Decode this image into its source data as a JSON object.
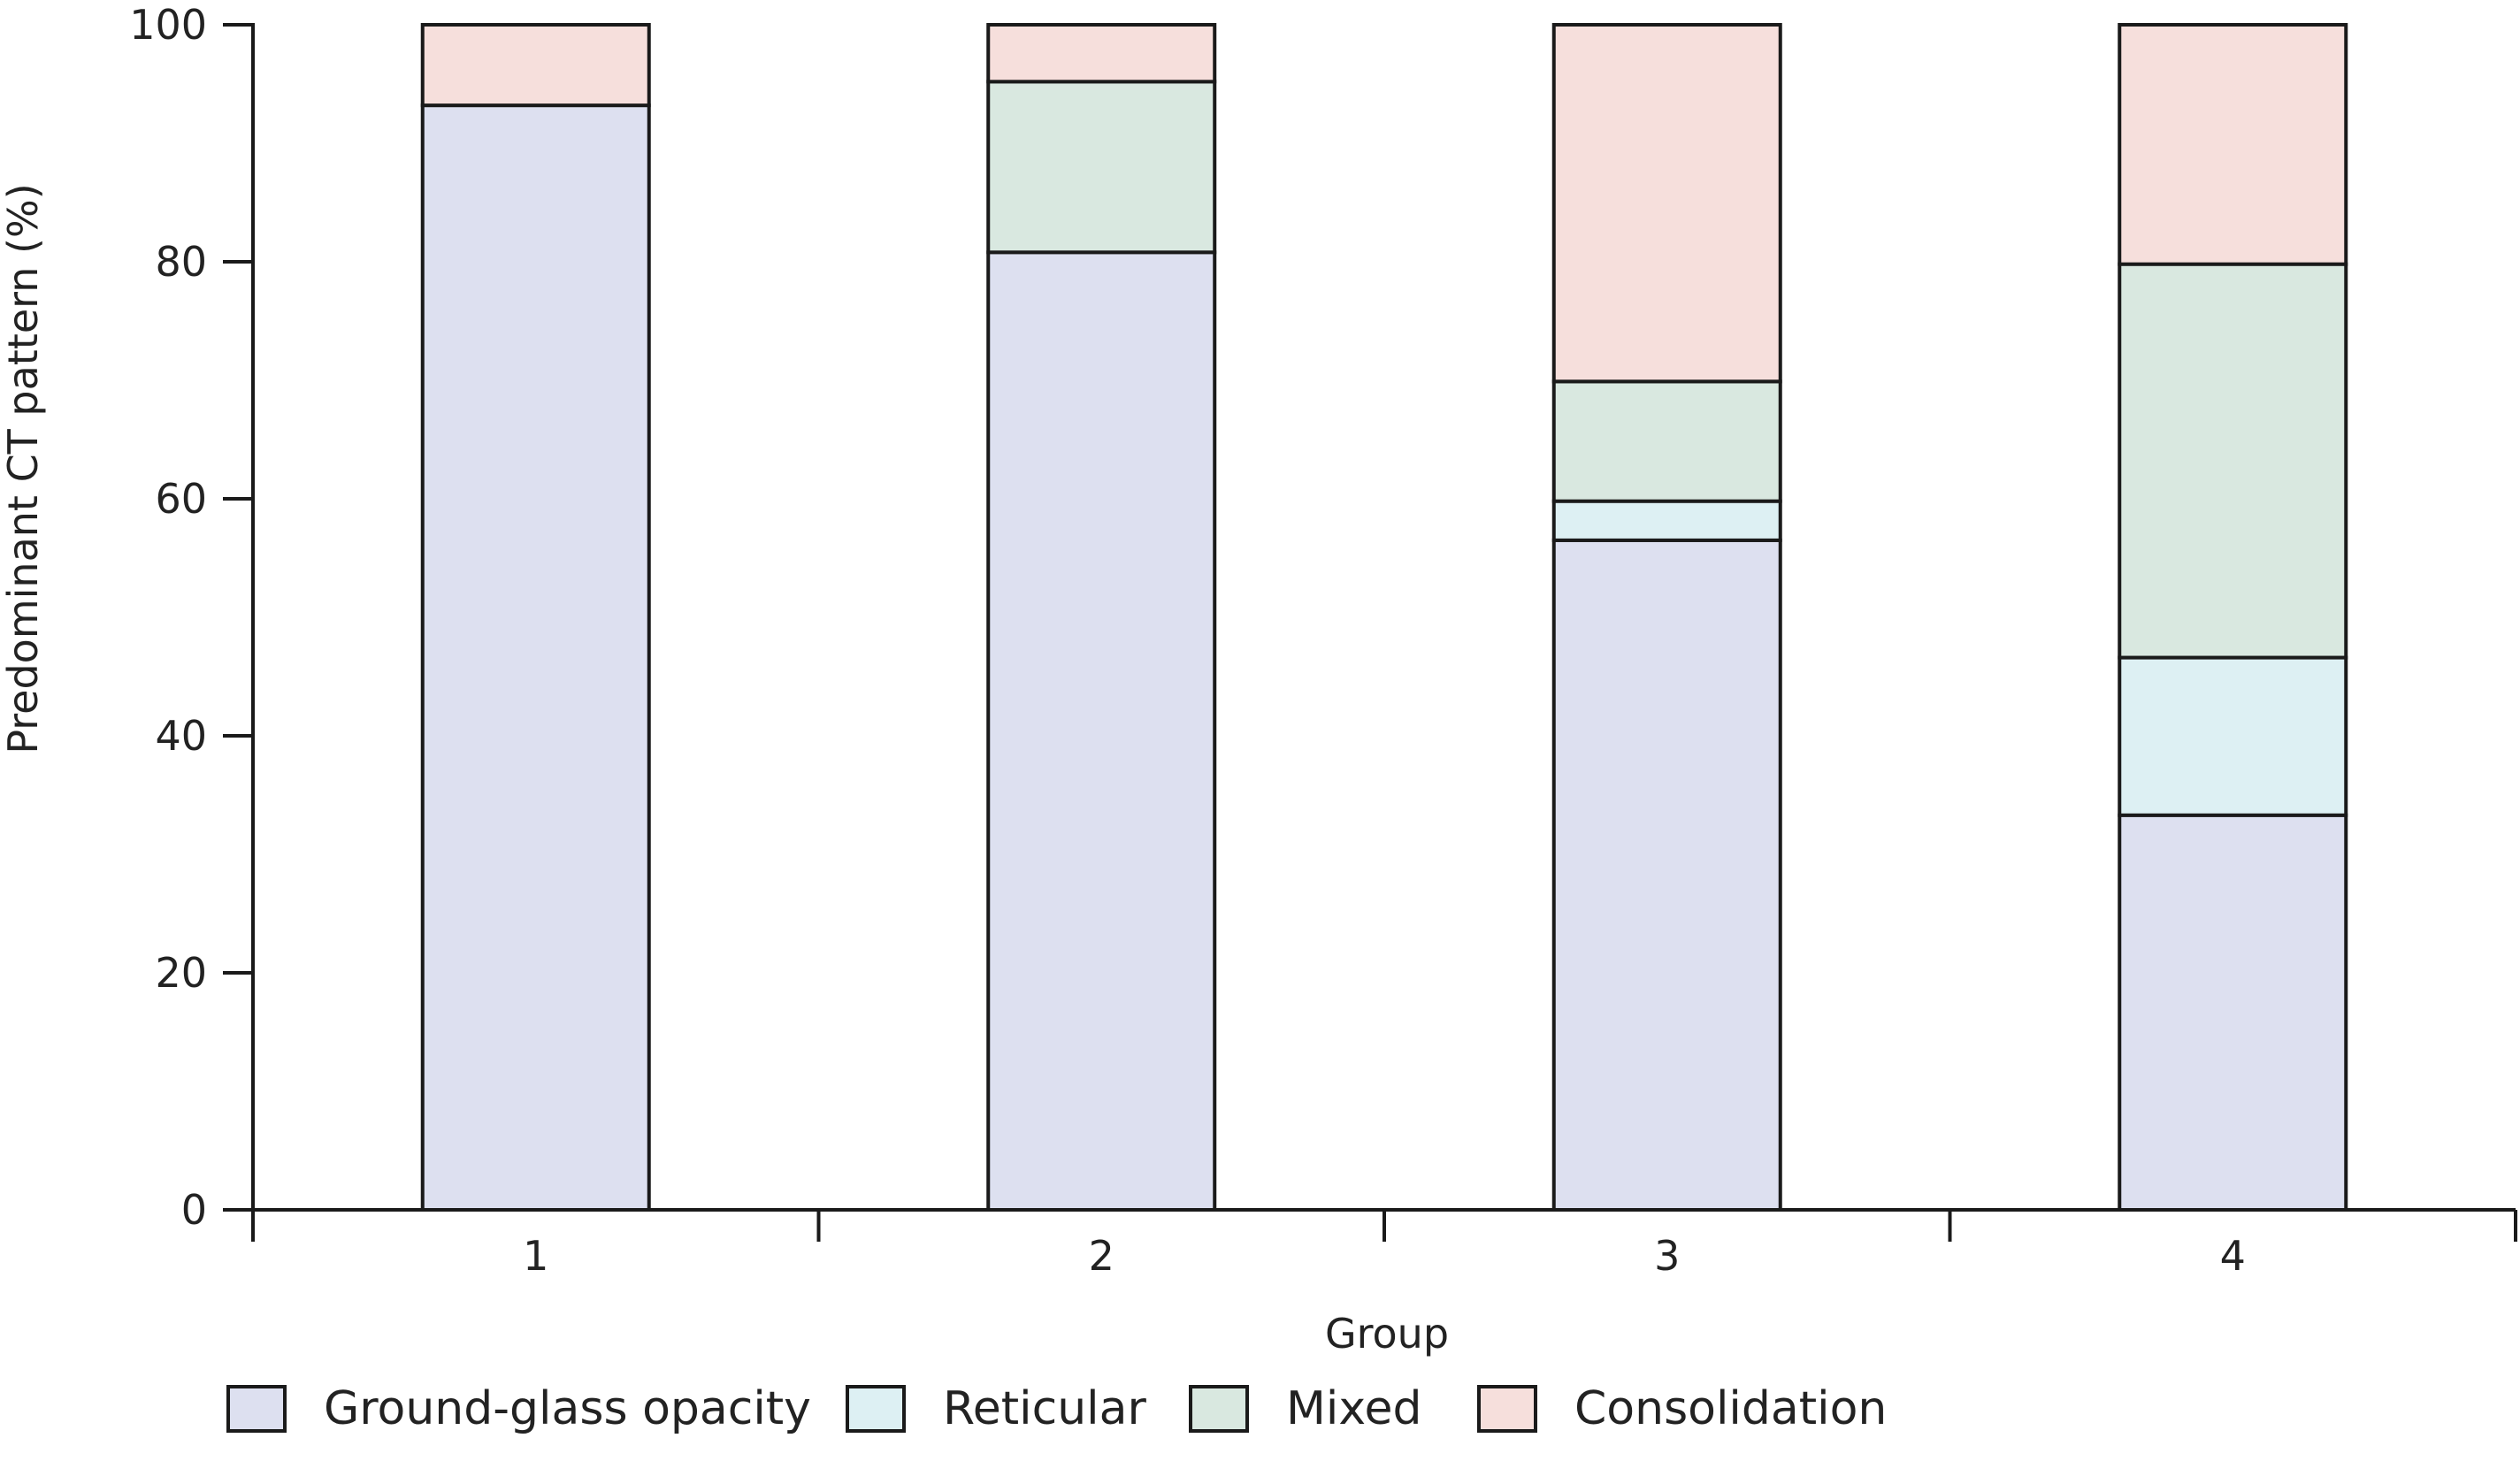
{
  "chart_data": {
    "type": "bar",
    "stacked": true,
    "title": "",
    "xlabel": "Group",
    "ylabel": "Predominant CT pattern (%)",
    "ylim": [
      0,
      100
    ],
    "yticks": [
      0,
      20,
      40,
      60,
      80,
      100
    ],
    "categories": [
      "1",
      "2",
      "3",
      "4"
    ],
    "grid": false,
    "legend_position": "bottom",
    "series": [
      {
        "name": "Ground-glass opacity",
        "color": "#dde0f0",
        "values": [
          93.2,
          80.8,
          56.5,
          33.3
        ]
      },
      {
        "name": "Reticular",
        "color": "#ddf0f3",
        "values": [
          0,
          0,
          3.3,
          13.3
        ]
      },
      {
        "name": "Mixed",
        "color": "#d9e8e0",
        "values": [
          0,
          14.4,
          10.1,
          33.2
        ]
      },
      {
        "name": "Consolidation",
        "color": "#f6dfdc",
        "values": [
          6.8,
          4.8,
          30.1,
          20.2
        ]
      }
    ]
  }
}
